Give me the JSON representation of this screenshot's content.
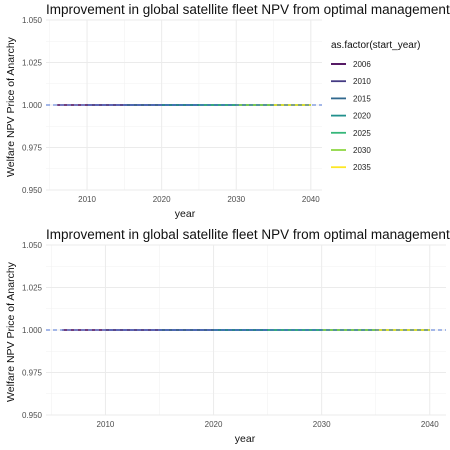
{
  "chart_data": [
    {
      "type": "line",
      "title": "Improvement in global satellite fleet NPV from optimal management",
      "xlabel": "year",
      "ylabel": "Welfare NPV Price of Anarchy",
      "xlim": [
        2004.5,
        2041.5
      ],
      "ylim": [
        0.95,
        1.05
      ],
      "x_ticks": [
        2010,
        2020,
        2030,
        2040
      ],
      "y_ticks": [
        0.95,
        0.975,
        1.0,
        1.025,
        1.05
      ],
      "y_tick_labels": [
        "0.950",
        "0.975",
        "1.000",
        "1.025",
        "1.050"
      ],
      "grid": true,
      "legend": {
        "title": "as.factor(start_year)",
        "position": "right"
      },
      "reference_line": {
        "y": 1.0,
        "style": "dashed",
        "color": "#4a6fd1"
      },
      "series": [
        {
          "name": "2006",
          "color": "#440154",
          "x": [
            2006,
            2040
          ],
          "y": [
            1.0,
            1.0
          ]
        },
        {
          "name": "2010",
          "color": "#443a83",
          "x": [
            2010,
            2040
          ],
          "y": [
            1.0,
            1.0
          ]
        },
        {
          "name": "2015",
          "color": "#31688e",
          "x": [
            2015,
            2040
          ],
          "y": [
            1.0,
            1.0
          ]
        },
        {
          "name": "2020",
          "color": "#21908d",
          "x": [
            2020,
            2040
          ],
          "y": [
            1.0,
            1.0
          ]
        },
        {
          "name": "2025",
          "color": "#35b779",
          "x": [
            2025,
            2040
          ],
          "y": [
            1.0,
            1.0
          ]
        },
        {
          "name": "2030",
          "color": "#8fd744",
          "x": [
            2030,
            2040
          ],
          "y": [
            1.0,
            1.0
          ]
        },
        {
          "name": "2035",
          "color": "#fde725",
          "x": [
            2035,
            2040
          ],
          "y": [
            1.0,
            1.0
          ]
        }
      ]
    },
    {
      "type": "line",
      "title": "Improvement in global satellite fleet NPV from optimal management",
      "xlabel": "year",
      "ylabel": "Welfare NPV Price of Anarchy",
      "xlim": [
        2004.5,
        2041.5
      ],
      "ylim": [
        0.95,
        1.05
      ],
      "x_ticks": [
        2010,
        2020,
        2030,
        2040
      ],
      "y_ticks": [
        0.95,
        0.975,
        1.0,
        1.025,
        1.05
      ],
      "y_tick_labels": [
        "0.950",
        "0.975",
        "1.000",
        "1.025",
        "1.050"
      ],
      "grid": true,
      "reference_line": {
        "y": 1.0,
        "style": "dashed",
        "color": "#4a6fd1"
      },
      "series": [
        {
          "color": "#440154",
          "x": [
            2006,
            2040
          ],
          "y": [
            1.0,
            1.0
          ]
        },
        {
          "color": "#443a83",
          "x": [
            2010,
            2040
          ],
          "y": [
            1.0,
            1.0
          ]
        },
        {
          "color": "#31688e",
          "x": [
            2015,
            2040
          ],
          "y": [
            1.0,
            1.0
          ]
        },
        {
          "color": "#21908d",
          "x": [
            2020,
            2040
          ],
          "y": [
            1.0,
            1.0
          ]
        },
        {
          "color": "#35b779",
          "x": [
            2025,
            2040
          ],
          "y": [
            1.0,
            1.0
          ]
        },
        {
          "color": "#8fd744",
          "x": [
            2030,
            2040
          ],
          "y": [
            1.0,
            1.0
          ]
        },
        {
          "color": "#fde725",
          "x": [
            2035,
            2040
          ],
          "y": [
            1.0,
            1.0
          ]
        }
      ]
    }
  ]
}
